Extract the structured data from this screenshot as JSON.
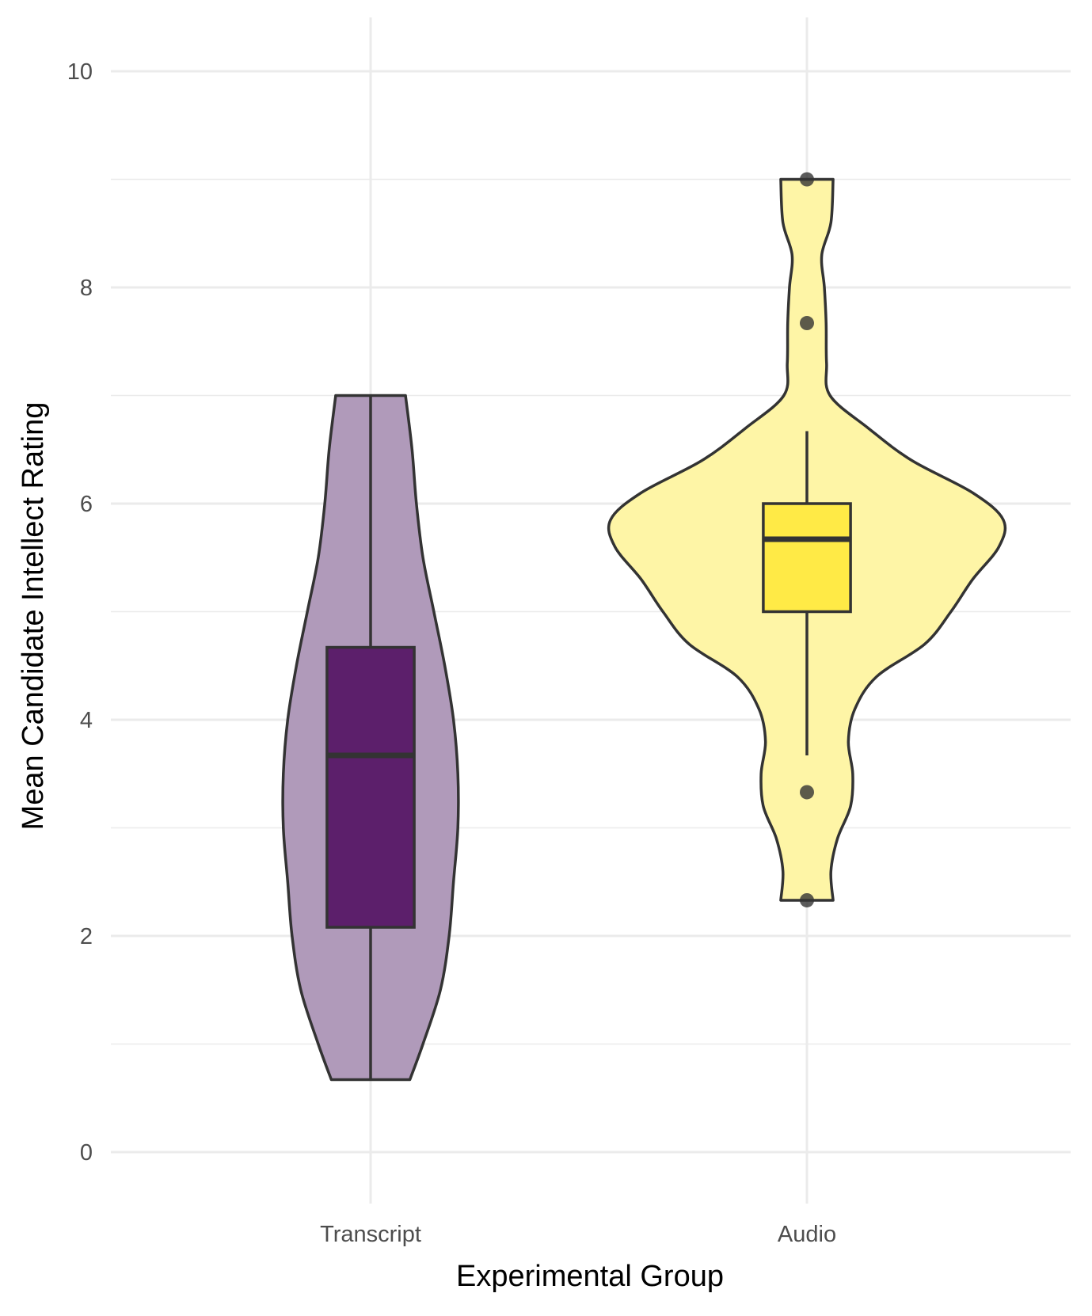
{
  "chart_data": {
    "type": "violin",
    "title": "",
    "xlabel": "Experimental Group",
    "ylabel": "Mean Candidate Intellect Rating",
    "ylim": [
      -0.5,
      10.5
    ],
    "yticks": [
      0,
      2,
      4,
      6,
      8,
      10
    ],
    "grid": true,
    "categories": [
      "Transcript",
      "Audio"
    ],
    "series": [
      {
        "category": "Transcript",
        "color": "#5c1f6b",
        "violin_fill": "#b09aba",
        "min": 0.67,
        "q1": 2.08,
        "median": 3.67,
        "q3": 4.67,
        "max": 7.0,
        "outliers": [],
        "density_half_width": [
          {
            "y": 0.67,
            "w": 0.09
          },
          {
            "y": 1.0,
            "w": 0.12
          },
          {
            "y": 1.5,
            "w": 0.16
          },
          {
            "y": 2.0,
            "w": 0.18
          },
          {
            "y": 2.5,
            "w": 0.19
          },
          {
            "y": 3.0,
            "w": 0.2
          },
          {
            "y": 3.5,
            "w": 0.2
          },
          {
            "y": 4.0,
            "w": 0.19
          },
          {
            "y": 4.5,
            "w": 0.17
          },
          {
            "y": 5.0,
            "w": 0.145
          },
          {
            "y": 5.5,
            "w": 0.12
          },
          {
            "y": 6.0,
            "w": 0.105
          },
          {
            "y": 6.5,
            "w": 0.095
          },
          {
            "y": 7.0,
            "w": 0.08
          }
        ]
      },
      {
        "category": "Audio",
        "color": "#ffea46",
        "violin_fill": "#fef5a6",
        "min": 3.67,
        "q1": 5.0,
        "median": 5.67,
        "q3": 6.0,
        "max": 6.67,
        "outliers": [
          9.0,
          7.67,
          3.33,
          2.33
        ],
        "density_half_width": [
          {
            "y": 2.33,
            "w": 0.06
          },
          {
            "y": 2.6,
            "w": 0.055
          },
          {
            "y": 2.9,
            "w": 0.07
          },
          {
            "y": 3.2,
            "w": 0.1
          },
          {
            "y": 3.5,
            "w": 0.105
          },
          {
            "y": 3.8,
            "w": 0.095
          },
          {
            "y": 4.1,
            "w": 0.11
          },
          {
            "y": 4.4,
            "w": 0.16
          },
          {
            "y": 4.7,
            "w": 0.27
          },
          {
            "y": 5.0,
            "w": 0.33
          },
          {
            "y": 5.3,
            "w": 0.38
          },
          {
            "y": 5.6,
            "w": 0.44
          },
          {
            "y": 5.85,
            "w": 0.45
          },
          {
            "y": 6.1,
            "w": 0.38
          },
          {
            "y": 6.4,
            "w": 0.24
          },
          {
            "y": 6.7,
            "w": 0.14
          },
          {
            "y": 7.0,
            "w": 0.053
          },
          {
            "y": 7.3,
            "w": 0.045
          },
          {
            "y": 7.67,
            "w": 0.044
          },
          {
            "y": 8.0,
            "w": 0.04
          },
          {
            "y": 8.3,
            "w": 0.034
          },
          {
            "y": 8.6,
            "w": 0.055
          },
          {
            "y": 9.0,
            "w": 0.06
          }
        ]
      }
    ]
  }
}
